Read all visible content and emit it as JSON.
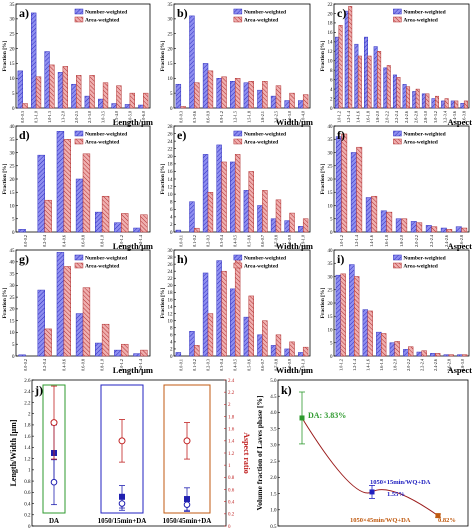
{
  "colors": {
    "number_fill": "#8f8ff0",
    "number_stroke": "#3030c0",
    "area_fill": "#f0b0b0",
    "area_stroke": "#b03030",
    "da_color": "#2e9a2e",
    "wq_color": "#2020c0",
    "fc_color": "#c05a10",
    "aspect_marker": "#c02020",
    "length_marker": "#2020b0"
  },
  "legend": {
    "number": "Number-weighted",
    "area": "Area-weighted"
  },
  "chart_data": [
    {
      "panel": "a)",
      "type": "bar",
      "xlabel": "Length/μm",
      "ylabel": "Fraction [%]",
      "ylim": [
        0,
        35
      ],
      "yticks": [
        0,
        5,
        10,
        15,
        20,
        25,
        30,
        35
      ],
      "categories": [
        "0.0-0.3",
        "0.3-1.0",
        "1.0-1.3",
        "1.3-2.0",
        "2.0-2.5",
        "2.5-3.0",
        "3.0-3.5",
        "3.5-4.0",
        "4.0-5.0",
        "5.0-6.0"
      ],
      "series": [
        {
          "name": "Number-weighted",
          "values": [
            12.5,
            32,
            19,
            12,
            8,
            4,
            3,
            1.5,
            1.2,
            1
          ]
        },
        {
          "name": "Area-weighted",
          "values": [
            1.5,
            10.5,
            14.5,
            14,
            11,
            11,
            8.5,
            7.5,
            5,
            5
          ]
        }
      ]
    },
    {
      "panel": "b)",
      "type": "bar",
      "xlabel": "Width/μm",
      "ylabel": "Fraction [%]",
      "ylim": [
        0,
        35
      ],
      "yticks": [
        0,
        5,
        10,
        15,
        20,
        25,
        30,
        35
      ],
      "categories": [
        "0.0-0.3",
        "0.3-0.6",
        "0.6-0.9",
        "0.9-1.2",
        "1.2-1.5",
        "1.5-1.8",
        "1.8-2.1",
        "2.1-2.5",
        "2.5-3.0",
        "3.0-4.0"
      ],
      "series": [
        {
          "name": "Number-weighted",
          "values": [
            8,
            31,
            15,
            10,
            9,
            8.5,
            6,
            4,
            2.5,
            2.5
          ]
        },
        {
          "name": "Area-weighted",
          "values": [
            0.5,
            8.5,
            12.5,
            10.5,
            10,
            9,
            9,
            7.5,
            5,
            4.5
          ]
        }
      ]
    },
    {
      "panel": "c)",
      "type": "bar",
      "xlabel": "Aspect",
      "ylabel": "Fraction [%]",
      "ylim": [
        0,
        22
      ],
      "yticks": [
        0,
        2,
        4,
        6,
        8,
        10,
        12,
        14,
        16,
        18,
        20,
        22
      ],
      "categories": [
        "1.0-1.2",
        "1.2-1.4",
        "1.4-1.6",
        "1.6-1.8",
        "1.8-2.0",
        "2.0-2.2",
        "2.2-2.4",
        "2.4-2.6",
        "2.6-2.8",
        "2.8-3.0",
        "3.0-3.2",
        "3.2-3.4",
        "3.4-3.6",
        "3.6-3.8"
      ],
      "series": [
        {
          "name": "Number-weighted",
          "values": [
            15,
            20.5,
            13.5,
            15,
            13,
            8.5,
            7,
            5,
            3.5,
            3,
            2,
            1.5,
            1.5,
            1
          ]
        },
        {
          "name": "Area-weighted",
          "values": [
            17.5,
            21.5,
            11,
            11,
            12,
            9,
            6.5,
            4.5,
            4,
            3,
            2.5,
            2,
            1.5,
            1.5
          ]
        }
      ]
    },
    {
      "panel": "d)",
      "type": "bar",
      "xlabel": "Length/μm",
      "ylabel": "Fraction [%]",
      "ylim": [
        0,
        40
      ],
      "yticks": [
        0,
        5,
        10,
        15,
        20,
        25,
        30,
        35,
        40
      ],
      "categories": [
        "0.0-0.2",
        "0.2-0.4",
        "0.4-0.6",
        "0.6-0.8",
        "0.8-1.0",
        "1.0-1.2",
        "1.2-1.4"
      ],
      "series": [
        {
          "name": "Number-weighted",
          "values": [
            1,
            29,
            38,
            20,
            7.5,
            3.5,
            1.5
          ]
        },
        {
          "name": "Area-weighted",
          "values": [
            0,
            12,
            35,
            29.5,
            13.5,
            7,
            6.5
          ]
        }
      ]
    },
    {
      "panel": "e)",
      "type": "bar",
      "xlabel": "Width/μm",
      "ylabel": "Fraction [%]",
      "ylim": [
        0,
        28
      ],
      "yticks": [
        0,
        2,
        4,
        6,
        8,
        10,
        12,
        14,
        16,
        18,
        20,
        22,
        24,
        26,
        28
      ],
      "categories": [
        "0.0-0.1",
        "0.1-0.2",
        "0.2-0.3",
        "0.3-0.4",
        "0.4-0.5",
        "0.5-0.6",
        "0.6-0.7",
        "0.7-0.8",
        "0.8-0.9",
        "0.9-1.0"
      ],
      "series": [
        {
          "name": "Number-weighted",
          "values": [
            0.5,
            8,
            20.5,
            23,
            18.5,
            11,
            7,
            3.5,
            3,
            1.5
          ]
        },
        {
          "name": "Area-weighted",
          "values": [
            0,
            1,
            10.5,
            18.5,
            20.5,
            16,
            11,
            8.5,
            5,
            3.5
          ]
        }
      ]
    },
    {
      "panel": "f)",
      "type": "bar",
      "xlabel": "Aspect",
      "ylabel": "Fraction [%]",
      "ylim": [
        0,
        40
      ],
      "yticks": [
        0,
        5,
        10,
        15,
        20,
        25,
        30,
        35,
        40
      ],
      "categories": [
        "1.0-1.2",
        "1.2-1.4",
        "1.4-1.6",
        "1.6-1.8",
        "1.8-2.0",
        "2.0-2.2",
        "2.2-2.4",
        "2.4-2.6",
        "2.6-2.8"
      ],
      "series": [
        {
          "name": "Number-weighted",
          "values": [
            36,
            30,
            13,
            8,
            5,
            4,
            2.5,
            1.5,
            2
          ]
        },
        {
          "name": "Area-weighted",
          "values": [
            37,
            32,
            13.5,
            7.5,
            5,
            3.5,
            2,
            1,
            1.5
          ]
        }
      ]
    },
    {
      "panel": "g)",
      "type": "bar",
      "xlabel": "Length/μm",
      "ylabel": "Fraction [%]",
      "ylim": [
        0,
        45
      ],
      "yticks": [
        0,
        5,
        10,
        15,
        20,
        25,
        30,
        35,
        40,
        45
      ],
      "categories": [
        "0.0-0.2",
        "0.2-0.4",
        "0.4-0.6",
        "0.6-0.8",
        "0.8-1.0",
        "1.0-1.2",
        "1.2-1.4"
      ],
      "series": [
        {
          "name": "Number-weighted",
          "values": [
            0.5,
            28,
            44,
            18,
            5.5,
            2.5,
            1
          ]
        },
        {
          "name": "Area-weighted",
          "values": [
            0,
            11.5,
            38,
            29,
            13.5,
            5,
            2.5
          ]
        }
      ]
    },
    {
      "panel": "h)",
      "type": "bar",
      "xlabel": "Width/μm",
      "ylabel": "Fraction [%]",
      "ylim": [
        0,
        30
      ],
      "yticks": [
        0,
        2,
        4,
        6,
        8,
        10,
        12,
        14,
        16,
        18,
        20,
        22,
        24,
        26,
        28,
        30
      ],
      "categories": [
        "0.0-0.1",
        "0.1-0.2",
        "0.2-0.3",
        "0.3-0.4",
        "0.4-0.5",
        "0.5-0.6",
        "0.6-0.7",
        "0.7-0.8",
        "0.8-0.9",
        "0.9-1.0"
      ],
      "series": [
        {
          "name": "Number-weighted",
          "values": [
            1,
            7,
            23.5,
            27,
            19,
            11,
            6,
            3,
            2,
            1
          ]
        },
        {
          "name": "Area-weighted",
          "values": [
            0,
            3,
            12,
            24,
            28.5,
            17,
            10,
            6,
            4,
            2.5
          ]
        }
      ]
    },
    {
      "panel": "i)",
      "type": "bar",
      "xlabel": "Aspect",
      "ylabel": "Fraction [%]",
      "ylim": [
        0,
        40
      ],
      "yticks": [
        0,
        5,
        10,
        15,
        20,
        25,
        30,
        35,
        40
      ],
      "categories": [
        "1.0-1.2",
        "1.2-1.4",
        "1.4-1.6",
        "1.6-1.8",
        "1.8-2.0",
        "2.0-2.2",
        "2.2-2.4",
        "2.4-2.6",
        "2.6-2.8",
        "2.8-3.0"
      ],
      "series": [
        {
          "name": "Number-weighted",
          "values": [
            30.5,
            34.5,
            17.5,
            9,
            5,
            2.5,
            1.5,
            1,
            0.5,
            0.5
          ]
        },
        {
          "name": "Area-weighted",
          "values": [
            31,
            30,
            17,
            8.5,
            5.5,
            3.5,
            2,
            1,
            0.5,
            0.5
          ]
        }
      ]
    },
    {
      "panel": "j)",
      "type": "scatter",
      "ylabel": "Length/Width [μm]",
      "y2label": "Aspect ratio",
      "ylim": [
        0,
        2.6
      ],
      "yticks": [
        0,
        0.2,
        0.4,
        0.6,
        0.8,
        1.0,
        1.2,
        1.4,
        1.6,
        1.8,
        2.0,
        2.2,
        2.4,
        2.6
      ],
      "y2lim": [
        0,
        2.4
      ],
      "y2ticks": [
        0,
        0.2,
        0.4,
        0.6,
        0.8,
        1.0,
        1.2,
        1.4,
        1.6,
        1.8,
        2.0,
        2.2,
        2.4
      ],
      "categories": [
        "DA",
        "1050/15min+DA",
        "1050/45min+DA"
      ],
      "series": [
        {
          "name": "Length",
          "values": [
            1.3,
            0.52,
            0.48
          ],
          "errors": [
            0.5,
            0.2,
            0.2
          ]
        },
        {
          "name": "Width",
          "values": [
            0.78,
            0.4,
            0.38
          ],
          "errors": [
            0.4,
            0.12,
            0.12
          ]
        },
        {
          "name": "Aspect ratio",
          "values": [
            1.7,
            1.4,
            1.4
          ],
          "errors": [
            0.6,
            0.35,
            0.3
          ]
        }
      ]
    },
    {
      "panel": "k)",
      "type": "scatter",
      "ylabel": "Volume fraction of Laves phase [%]",
      "ylim": [
        0.5,
        5.0
      ],
      "yticks": [
        0.5,
        1.0,
        1.5,
        2.0,
        2.5,
        3.0,
        3.5,
        4.0,
        4.5,
        5.0
      ],
      "categories": [
        "DA",
        "1050×15min/WQ+DA",
        "1050×45min/WQ+DA"
      ],
      "values": [
        3.83,
        1.55,
        0.82
      ],
      "errors": [
        0.8,
        0.2,
        0.05
      ],
      "annotations": [
        "DA: 3.83%",
        "1050×15min/WQ+DA",
        "1.55%",
        "1050×45min/WQ+DA",
        "0.82%"
      ]
    }
  ]
}
